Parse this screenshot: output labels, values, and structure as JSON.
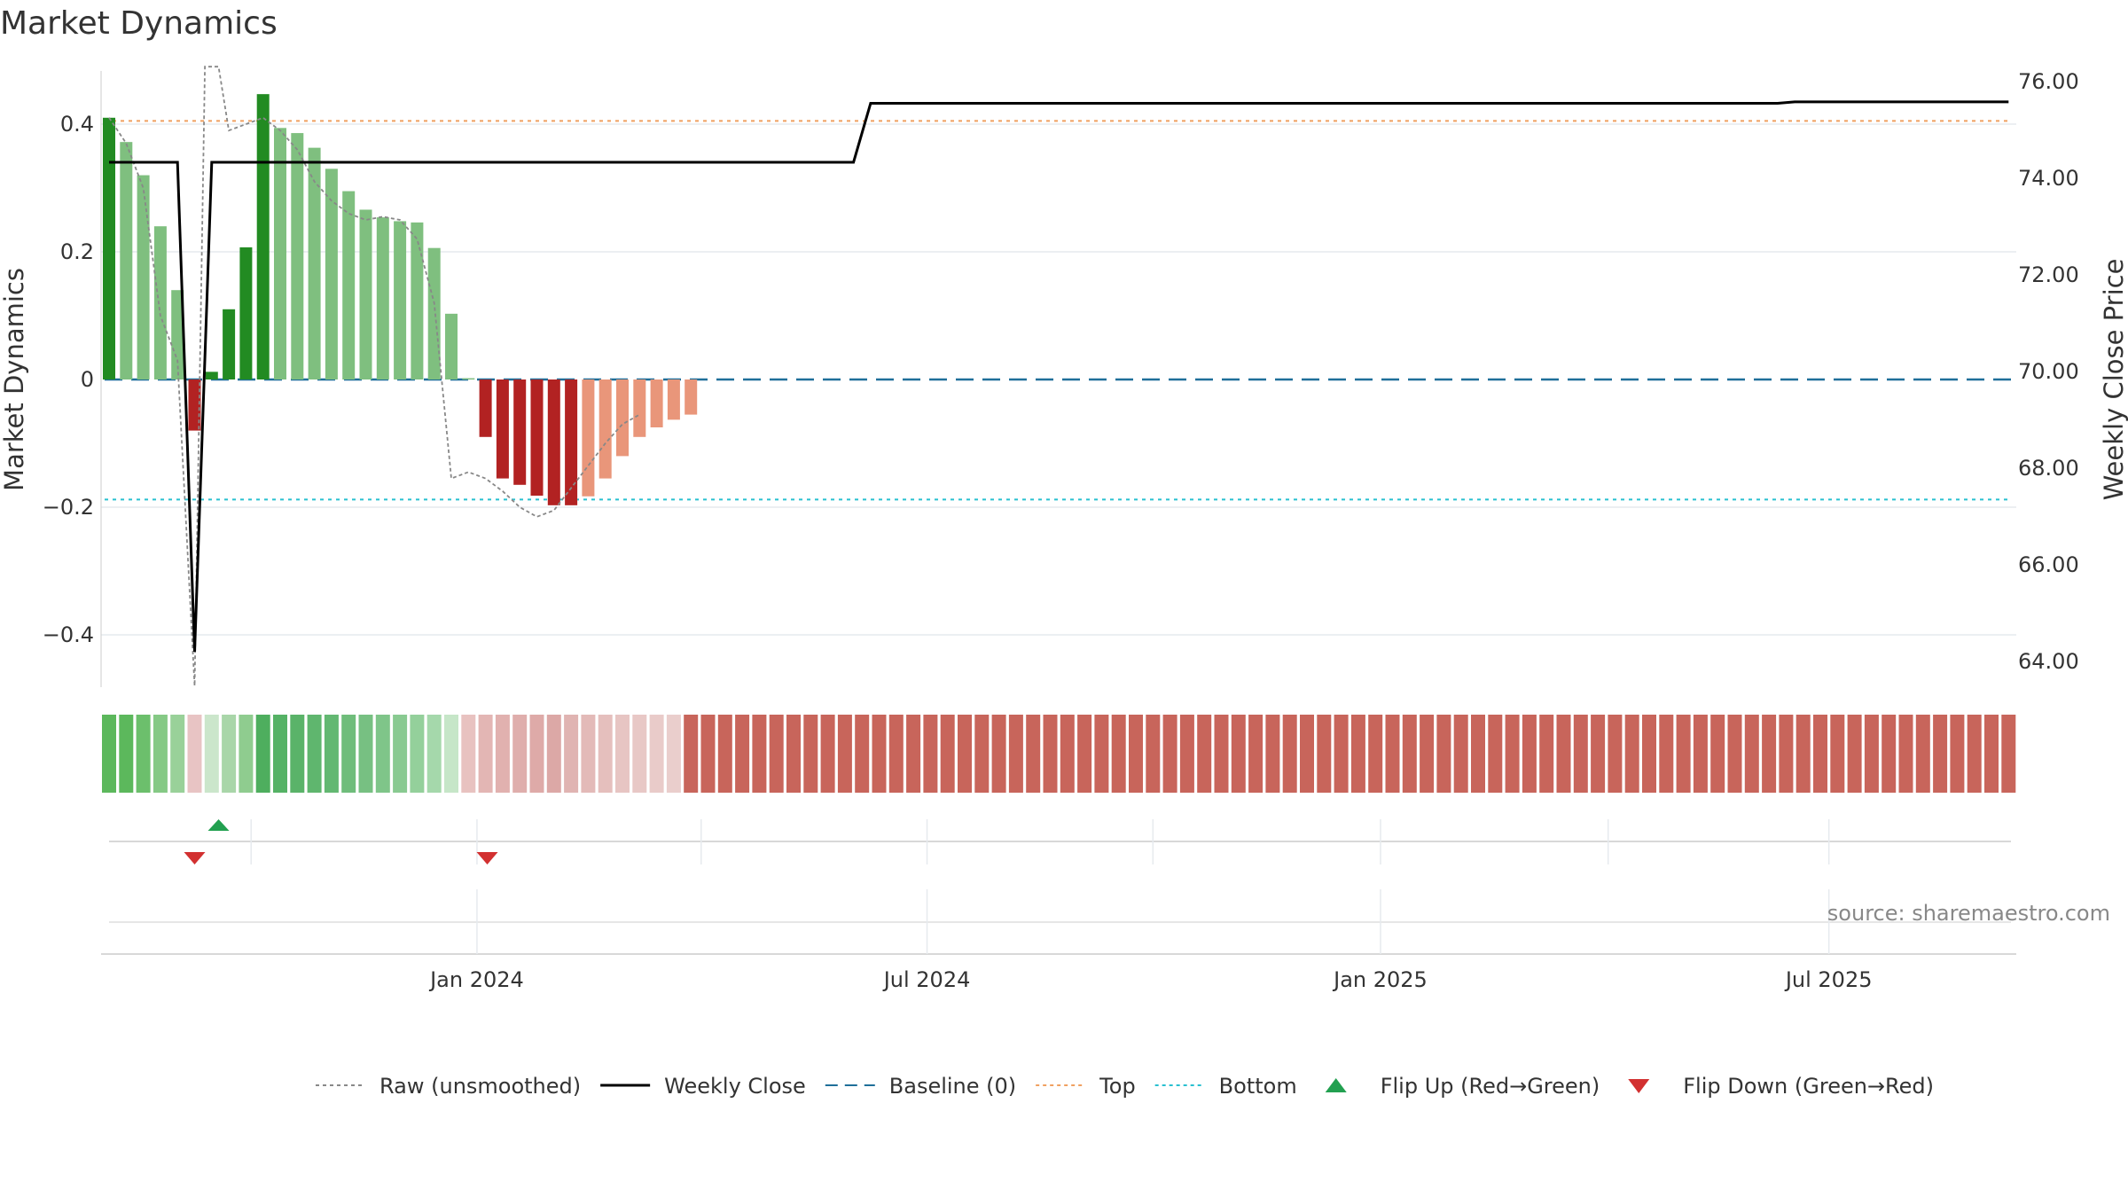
{
  "chart_data": {
    "type": "bar+line",
    "title": "Market Dynamics",
    "y_left_label": "Market Dynamics",
    "y_right_label": "Weekly Close Price",
    "y_left_range": [
      -0.48,
      0.49
    ],
    "y_right_range": [
      63.4,
      76.4
    ],
    "y_left_ticks": [
      {
        "v": 0.4,
        "label": "0.4"
      },
      {
        "v": 0.2,
        "label": "0.2"
      },
      {
        "v": 0,
        "label": "0"
      },
      {
        "v": -0.2,
        "label": "−0.2"
      },
      {
        "v": -0.4,
        "label": "−0.4"
      }
    ],
    "y_right_ticks": [
      {
        "v": 76,
        "label": "76.00"
      },
      {
        "v": 74,
        "label": "74.00"
      },
      {
        "v": 72,
        "label": "72.00"
      },
      {
        "v": 70,
        "label": "70.00"
      },
      {
        "v": 68,
        "label": "68.00"
      },
      {
        "v": 66,
        "label": "66.00"
      },
      {
        "v": 64,
        "label": "64.00"
      }
    ],
    "x_week_count": 112,
    "x_ticks": [
      {
        "week": 21.5,
        "label": "Jan 2024"
      },
      {
        "week": 47.8,
        "label": "Jul 2024"
      },
      {
        "week": 74.3,
        "label": "Jan 2025"
      },
      {
        "week": 100.5,
        "label": "Jul 2025"
      }
    ],
    "x_minor_grid_weeks": [
      8.3,
      34.6,
      61.0,
      87.6
    ],
    "top_level": 0.405,
    "bottom_level": -0.188,
    "baseline": 0,
    "bars": [
      {
        "week": 0,
        "value": 0.41,
        "color": "#228b22"
      },
      {
        "week": 1,
        "value": 0.372,
        "color": "#7fbf7f"
      },
      {
        "week": 2,
        "value": 0.32,
        "color": "#7fbf7f"
      },
      {
        "week": 3,
        "value": 0.24,
        "color": "#7fbf7f"
      },
      {
        "week": 4,
        "value": 0.14,
        "color": "#7fbf7f"
      },
      {
        "week": 5,
        "value": -0.08,
        "color": "#b22222"
      },
      {
        "week": 6,
        "value": 0.012,
        "color": "#228b22"
      },
      {
        "week": 7,
        "value": 0.11,
        "color": "#228b22"
      },
      {
        "week": 8,
        "value": 0.207,
        "color": "#228b22"
      },
      {
        "week": 9,
        "value": 0.447,
        "color": "#228b22"
      },
      {
        "week": 10,
        "value": 0.394,
        "color": "#7fbf7f"
      },
      {
        "week": 11,
        "value": 0.386,
        "color": "#7fbf7f"
      },
      {
        "week": 12,
        "value": 0.363,
        "color": "#7fbf7f"
      },
      {
        "week": 13,
        "value": 0.33,
        "color": "#7fbf7f"
      },
      {
        "week": 14,
        "value": 0.295,
        "color": "#7fbf7f"
      },
      {
        "week": 15,
        "value": 0.266,
        "color": "#7fbf7f"
      },
      {
        "week": 16,
        "value": 0.254,
        "color": "#7fbf7f"
      },
      {
        "week": 17,
        "value": 0.248,
        "color": "#7fbf7f"
      },
      {
        "week": 18,
        "value": 0.246,
        "color": "#7fbf7f"
      },
      {
        "week": 19,
        "value": 0.206,
        "color": "#7fbf7f"
      },
      {
        "week": 20,
        "value": 0.103,
        "color": "#7fbf7f"
      },
      {
        "week": 21,
        "value": 0.002,
        "color": "#7fbf7f"
      },
      {
        "week": 22,
        "value": -0.09,
        "color": "#b22222"
      },
      {
        "week": 23,
        "value": -0.155,
        "color": "#b22222"
      },
      {
        "week": 24,
        "value": -0.165,
        "color": "#b22222"
      },
      {
        "week": 25,
        "value": -0.182,
        "color": "#b22222"
      },
      {
        "week": 26,
        "value": -0.197,
        "color": "#b22222"
      },
      {
        "week": 27,
        "value": -0.197,
        "color": "#b22222"
      },
      {
        "week": 28,
        "value": -0.183,
        "color": "#e9967a"
      },
      {
        "week": 29,
        "value": -0.155,
        "color": "#e9967a"
      },
      {
        "week": 30,
        "value": -0.12,
        "color": "#e9967a"
      },
      {
        "week": 31,
        "value": -0.09,
        "color": "#e9967a"
      },
      {
        "week": 32,
        "value": -0.075,
        "color": "#e9967a"
      },
      {
        "week": 33,
        "value": -0.063,
        "color": "#e9967a"
      },
      {
        "week": 34,
        "value": -0.055,
        "color": "#e9967a"
      }
    ],
    "raw_series": [
      {
        "week": 0,
        "value": 0.41
      },
      {
        "week": 1,
        "value": 0.37
      },
      {
        "week": 2,
        "value": 0.3
      },
      {
        "week": 3,
        "value": 0.1
      },
      {
        "week": 4,
        "value": 0.03
      },
      {
        "week": 5,
        "value": -0.48
      },
      {
        "week": 5.6,
        "value": 0.49
      },
      {
        "week": 6.4,
        "value": 0.49
      },
      {
        "week": 7,
        "value": 0.39
      },
      {
        "week": 8,
        "value": 0.4
      },
      {
        "week": 9,
        "value": 0.41
      },
      {
        "week": 10,
        "value": 0.39
      },
      {
        "week": 11,
        "value": 0.36
      },
      {
        "week": 12,
        "value": 0.31
      },
      {
        "week": 13,
        "value": 0.28
      },
      {
        "week": 14,
        "value": 0.26
      },
      {
        "week": 15,
        "value": 0.25
      },
      {
        "week": 16,
        "value": 0.255
      },
      {
        "week": 17,
        "value": 0.25
      },
      {
        "week": 18,
        "value": 0.22
      },
      {
        "week": 19,
        "value": 0.12
      },
      {
        "week": 20,
        "value": -0.155
      },
      {
        "week": 21,
        "value": -0.145
      },
      {
        "week": 22,
        "value": -0.155
      },
      {
        "week": 23,
        "value": -0.175
      },
      {
        "week": 24,
        "value": -0.2
      },
      {
        "week": 25,
        "value": -0.215
      },
      {
        "week": 26,
        "value": -0.205
      },
      {
        "week": 27,
        "value": -0.17
      },
      {
        "week": 28,
        "value": -0.135
      },
      {
        "week": 29,
        "value": -0.1
      },
      {
        "week": 30,
        "value": -0.07
      },
      {
        "week": 31,
        "value": -0.055
      }
    ],
    "weekly_close": [
      {
        "week": 0,
        "value": 74.33
      },
      {
        "week": 4,
        "value": 74.33
      },
      {
        "week": 5,
        "value": 64.2
      },
      {
        "week": 6,
        "value": 74.33
      },
      {
        "week": 43.5,
        "value": 74.33
      },
      {
        "week": 44.5,
        "value": 75.55
      },
      {
        "week": 97.5,
        "value": 75.55
      },
      {
        "week": 98.5,
        "value": 75.58
      },
      {
        "week": 111,
        "value": 75.58
      }
    ],
    "regime_strip": [
      "#5cb85c",
      "#5cb85c",
      "#6cbf6c",
      "#85c985",
      "#99d199",
      "#e8c4c4",
      "#cbe6cb",
      "#a9d6a9",
      "#8fcc8f",
      "#4eae5e",
      "#55b265",
      "#5ab369",
      "#5fb66e",
      "#63b872",
      "#6fbd7b",
      "#77c082",
      "#7fc589",
      "#89ca91",
      "#94d09b",
      "#a5d8ab",
      "#c6e6c8",
      "#e8c2c0",
      "#e3b6b4",
      "#e1b1af",
      "#dfaeac",
      "#deaaa8",
      "#dca8a6",
      "#e0b4b2",
      "#e3bab8",
      "#e5bfbd",
      "#e7c5c3",
      "#e8c8c6",
      "#e9cbc9",
      "#eacecc",
      "#c8655b"
    ],
    "regime_strip_fill_color": "#c8655b",
    "flip_up_weeks": [
      6.4
    ],
    "flip_down_weeks": [
      5,
      22.1
    ],
    "legend": [
      {
        "key": "raw",
        "label": "Raw (unsmoothed)",
        "color": "#888888",
        "style": "dotted"
      },
      {
        "key": "close",
        "label": "Weekly Close",
        "color": "#000000",
        "style": "solid"
      },
      {
        "key": "baseline",
        "label": "Baseline (0)",
        "color": "#1f6f99",
        "style": "dashed"
      },
      {
        "key": "top",
        "label": "Top",
        "color": "#f0a060",
        "style": "dotted"
      },
      {
        "key": "bottom",
        "label": "Bottom",
        "color": "#29c0d0",
        "style": "dotted"
      },
      {
        "key": "flip_up",
        "label": "Flip Up (Red→Green)",
        "color": "#22a050",
        "style": "triangle-up"
      },
      {
        "key": "flip_down",
        "label": "Flip Down (Green→Red)",
        "color": "#d23030",
        "style": "triangle-down"
      }
    ],
    "source": "source: sharemaestro.com"
  },
  "colors": {
    "baseline": "#1f6f99",
    "top": "#f0a060",
    "bottom": "#29c0d0",
    "raw": "#888888",
    "close": "#000000",
    "grid": "#e6eaee",
    "axis": "#cccccc",
    "flip_up": "#22a050",
    "flip_down": "#d23030"
  }
}
